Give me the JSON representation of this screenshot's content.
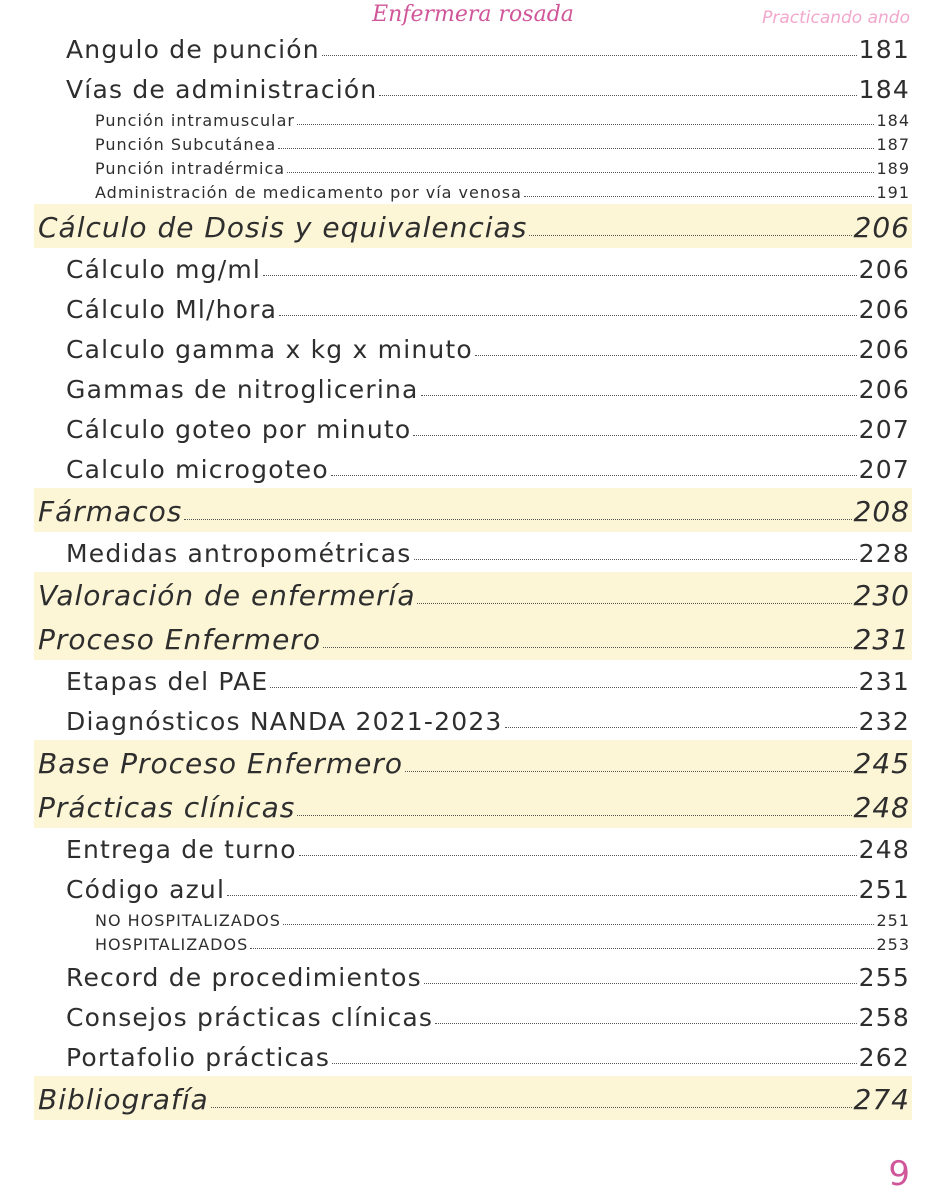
{
  "header": {
    "title": "Enfermera rosada",
    "subtitle": "Practicando ando"
  },
  "entries": [
    {
      "level": 2,
      "text": "Angulo de punción",
      "page": 181
    },
    {
      "level": 2,
      "text": "Vías de administración",
      "page": 184
    },
    {
      "level": 3,
      "text": "Punción intramuscular",
      "page": 184
    },
    {
      "level": 3,
      "text": "Punción Subcutánea",
      "page": 187
    },
    {
      "level": 3,
      "text": "Punción intradérmica",
      "page": 189
    },
    {
      "level": 3,
      "text": "Administración de medicamento por vía venosa",
      "page": 191
    },
    {
      "level": 1,
      "text": "Cálculo de Dosis y equivalencias",
      "page": 206
    },
    {
      "level": 2,
      "text": "Cálculo mg/ml",
      "page": 206
    },
    {
      "level": 2,
      "text": "Cálculo Ml/hora",
      "page": 206
    },
    {
      "level": 2,
      "text": "Calculo gamma x kg x minuto",
      "page": 206
    },
    {
      "level": 2,
      "text": "Gammas de nitroglicerina",
      "page": 206
    },
    {
      "level": 2,
      "text": "Cálculo goteo por minuto",
      "page": 207
    },
    {
      "level": 2,
      "text": "Calculo microgoteo",
      "page": 207
    },
    {
      "level": 1,
      "text": "Fármacos",
      "page": 208
    },
    {
      "level": 2,
      "text": "Medidas antropométricas",
      "page": 228
    },
    {
      "level": 1,
      "text": "Valoración de enfermería",
      "page": 230
    },
    {
      "level": 1,
      "text": "Proceso Enfermero",
      "page": 231
    },
    {
      "level": 2,
      "text": "Etapas del PAE",
      "page": 231
    },
    {
      "level": 2,
      "text": "Diagnósticos NANDA 2021-2023",
      "page": 232
    },
    {
      "level": 1,
      "text": "Base Proceso Enfermero",
      "page": 245
    },
    {
      "level": 1,
      "text": "Prácticas clínicas",
      "page": 248
    },
    {
      "level": 2,
      "text": "Entrega de turno",
      "page": 248
    },
    {
      "level": 2,
      "text": "Código azul",
      "page": 251
    },
    {
      "level": 3,
      "text": "NO HOSPITALIZADOS",
      "page": 251
    },
    {
      "level": 3,
      "text": "HOSPITALIZADOS",
      "page": 253
    },
    {
      "level": 2,
      "text": "Record de procedimientos",
      "page": 255
    },
    {
      "level": 2,
      "text": "Consejos prácticas clínicas",
      "page": 258
    },
    {
      "level": 2,
      "text": "Portafolio prácticas",
      "page": 262
    },
    {
      "level": 1,
      "text": "Bibliografía",
      "page": 274
    }
  ],
  "page_number": 9
}
